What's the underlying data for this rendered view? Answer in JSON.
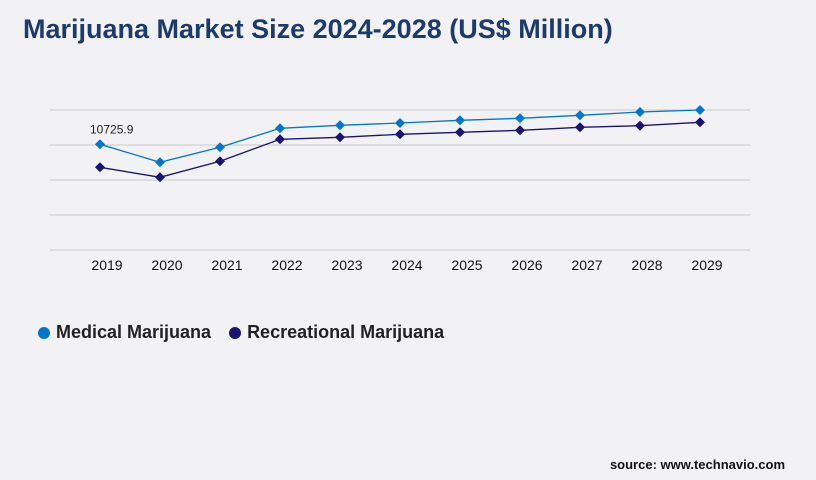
{
  "title": "Marijuana Market Size 2024-2028 (US$ Million)",
  "source": "source: www.technavio.com",
  "chart_data": {
    "type": "line",
    "title": "Marijuana Market Size 2024-2028 (US$ Million)",
    "x": [
      "2019",
      "2020",
      "2021",
      "2022",
      "2023",
      "2024",
      "2025",
      "2026",
      "2027",
      "2028",
      "2029"
    ],
    "ylim": [
      0,
      14200
    ],
    "grid": true,
    "legend": "bottom-left",
    "series": [
      {
        "name": "Medical Marijuana",
        "color": "#0077cc",
        "values": [
          10725.9,
          8895,
          10417,
          12344,
          12648,
          12882,
          13156,
          13358,
          13663,
          13997,
          14200
        ]
      },
      {
        "name": "Recreational Marijuana",
        "color": "#1a1370",
        "values": [
          8388,
          7374,
          8997,
          11228,
          11431,
          11735,
          11938,
          12141,
          12445,
          12608,
          12953
        ]
      }
    ],
    "annotations": [
      {
        "series": 0,
        "x": "2019",
        "text": "10725.9"
      }
    ]
  }
}
